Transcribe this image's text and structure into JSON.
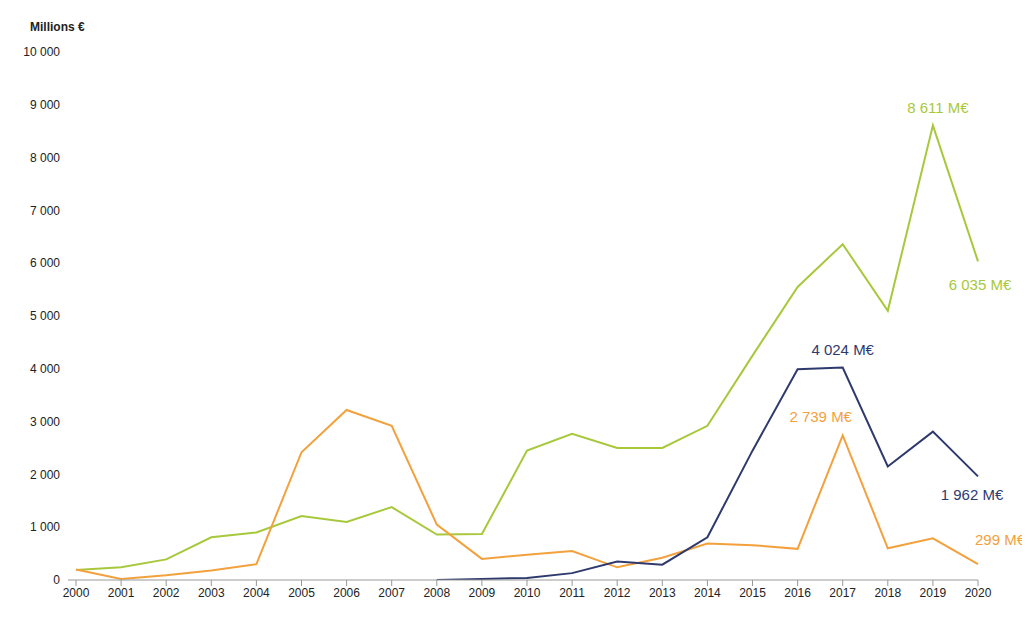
{
  "chart_data": {
    "type": "line",
    "y_label": "Millions €",
    "categories": [
      "2000",
      "2001",
      "2002",
      "2003",
      "2004",
      "2005",
      "2006",
      "2007",
      "2008",
      "2009",
      "2010",
      "2011",
      "2012",
      "2013",
      "2014",
      "2015",
      "2016",
      "2017",
      "2018",
      "2019",
      "2020"
    ],
    "series": [
      {
        "color": "#a8c83c",
        "values": [
          190,
          240,
          390,
          810,
          900,
          1210,
          1100,
          1380,
          860,
          870,
          2450,
          2770,
          2500,
          2500,
          2920,
          4250,
          5550,
          6360,
          5100,
          8611,
          6035
        ],
        "labels": [
          {
            "x": "2019",
            "label": "8 611 M€"
          },
          {
            "x": "2020",
            "label": "6 035 M€"
          }
        ]
      },
      {
        "color": "#f2a13c",
        "values": [
          200,
          20,
          90,
          180,
          300,
          2420,
          3220,
          2920,
          1050,
          400,
          480,
          550,
          240,
          420,
          690,
          660,
          590,
          2739,
          600,
          790,
          299
        ],
        "labels": [
          {
            "x": "2017",
            "label": "2 739 M€"
          },
          {
            "x": "2020",
            "label": "299 M€"
          }
        ]
      },
      {
        "color": "#2e3a6e",
        "values": [
          null,
          null,
          null,
          null,
          null,
          null,
          null,
          null,
          0,
          20,
          40,
          130,
          350,
          290,
          810,
          2450,
          3990,
          4024,
          2150,
          2810,
          1962
        ],
        "labels": [
          {
            "x": "2017",
            "label": "4 024 M€"
          },
          {
            "x": "2020",
            "label": "1 962 M€"
          }
        ]
      }
    ],
    "ylim": [
      0,
      10000
    ],
    "yticks": [
      0,
      {
        "value": 1000,
        "label": "1 000"
      },
      {
        "value": 2000,
        "label": "2 000"
      },
      {
        "value": 3000,
        "label": "3 000"
      },
      {
        "value": 4000,
        "label": "4 000"
      },
      {
        "value": 5000,
        "label": "5 000"
      },
      {
        "value": 6000,
        "label": "6 000"
      },
      {
        "value": 7000,
        "label": "7 000"
      },
      {
        "value": 8000,
        "label": "8 000"
      },
      {
        "value": 9000,
        "label": "9 000"
      },
      {
        "value": 10000,
        "label": "10 000"
      }
    ],
    "grid": false
  }
}
